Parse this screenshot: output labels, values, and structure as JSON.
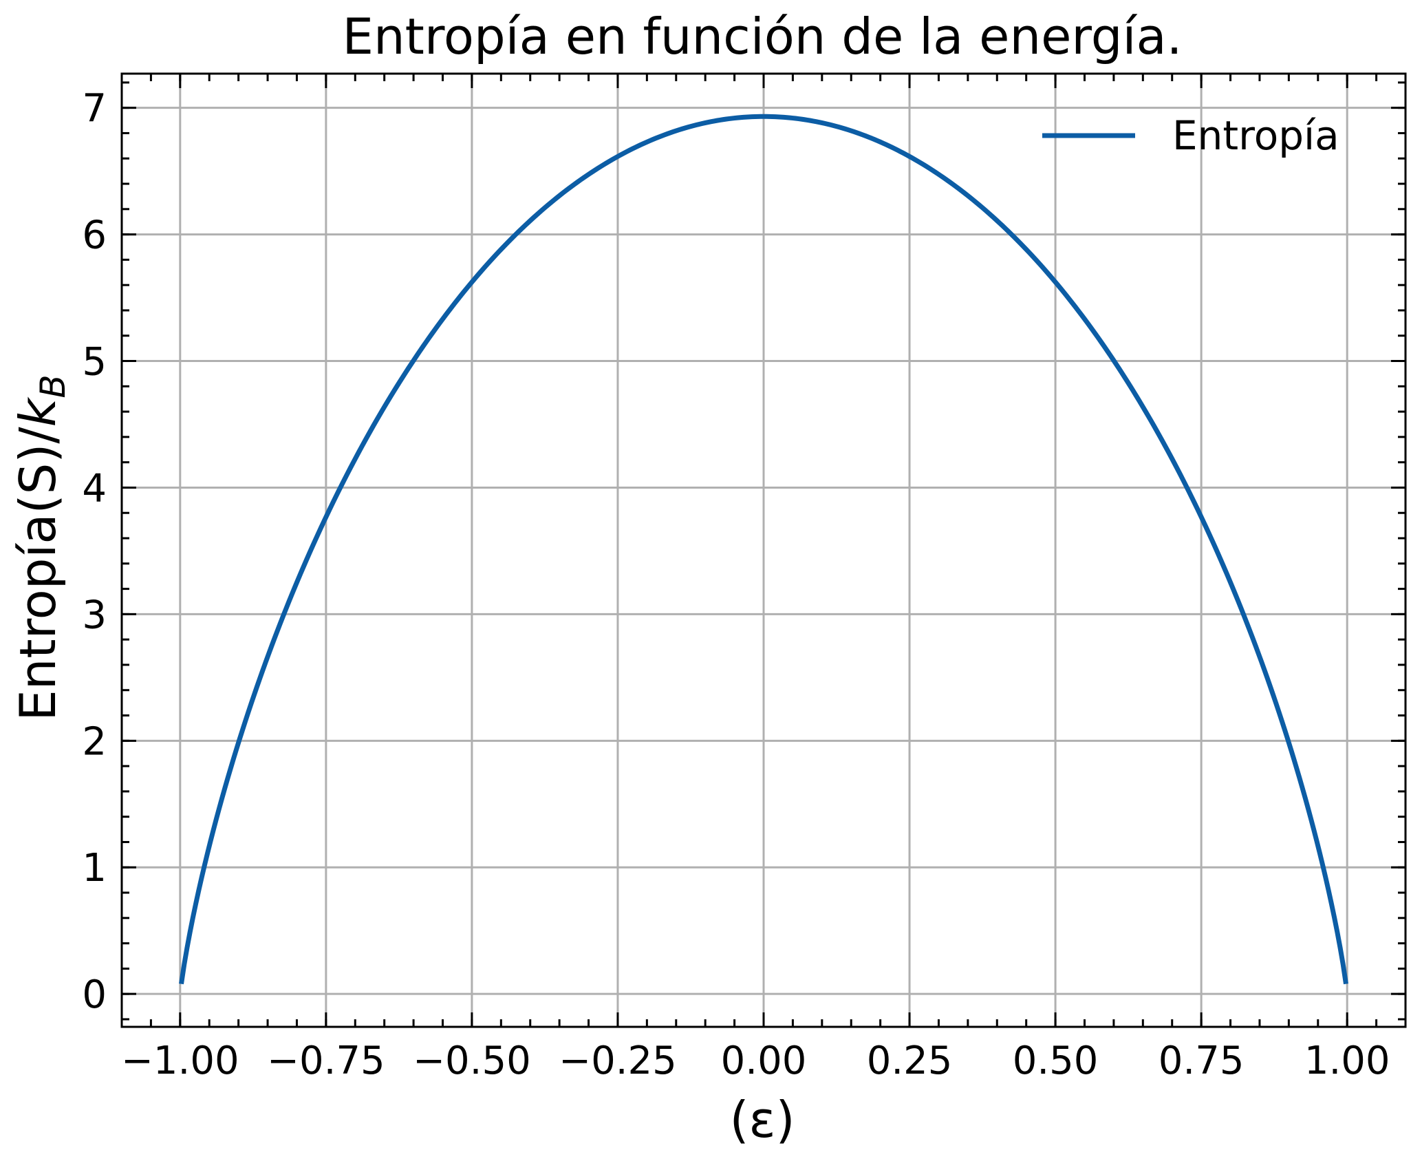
{
  "chart_data": {
    "type": "line",
    "title": "Entropía en función de la energía.",
    "xlabel": "(ε)",
    "ylabel_main": "Entropía(S)/",
    "ylabel_italic": "k",
    "ylabel_sub": "B",
    "xlim": [
      -1.1,
      1.1
    ],
    "ylim": [
      -0.26,
      7.27
    ],
    "xticks": [
      -1.0,
      -0.75,
      -0.5,
      -0.25,
      0.0,
      0.25,
      0.5,
      0.75,
      1.0
    ],
    "xtick_labels": [
      "−1.00",
      "−0.75",
      "−0.50",
      "−0.25",
      "0.00",
      "0.25",
      "0.50",
      "0.75",
      "1.00"
    ],
    "yticks": [
      0,
      1,
      2,
      3,
      4,
      5,
      6,
      7
    ],
    "ytick_labels": [
      "0",
      "1",
      "2",
      "3",
      "4",
      "5",
      "6",
      "7"
    ],
    "grid": true,
    "legend_position": "top-right",
    "series": [
      {
        "name": "Entropía",
        "color": "#0c5da5",
        "model": "N·[-p·ln(p) - (1-p)·ln(1-p)], p=(1+ε)/2",
        "N": 10,
        "x_range": [
          -0.998,
          0.998
        ],
        "x": [
          -0.998,
          -0.95,
          -0.9,
          -0.8,
          -0.7,
          -0.6,
          -0.5,
          -0.4,
          -0.3,
          -0.2,
          -0.1,
          0.0,
          0.1,
          0.2,
          0.3,
          0.4,
          0.5,
          0.6,
          0.7,
          0.8,
          0.9,
          0.95,
          0.998
        ],
        "y": [
          0.07,
          1.09,
          1.99,
          3.25,
          4.23,
          5.0,
          5.62,
          6.11,
          6.48,
          6.73,
          6.88,
          6.93,
          6.88,
          6.73,
          6.48,
          6.11,
          5.62,
          5.0,
          4.23,
          3.25,
          1.99,
          1.09,
          0.07
        ]
      }
    ]
  }
}
